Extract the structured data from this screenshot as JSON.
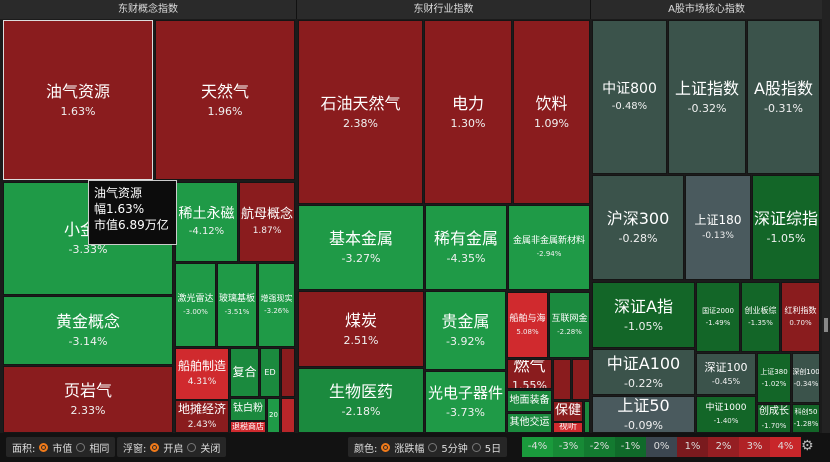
{
  "headers": [
    "东财概念指数",
    "东财行业指数",
    "A股市场核心指数"
  ],
  "colors": {
    "deep_red": "#8a1c1e",
    "red": "#b8262a",
    "bright_red": "#d02a2e",
    "green": "#1f9a47",
    "mid_green": "#1b8a3e",
    "dark_green": "#136628",
    "darker_green": "#0f4e22",
    "gray_green": "#3b534b",
    "gray": "#4a5a5e"
  },
  "tiles": [
    {
      "name": "油气资源",
      "pct": "1.63%",
      "c": "deep_red"
    },
    {
      "name": "天然气",
      "pct": "1.96%",
      "c": "deep_red"
    },
    {
      "name": "小金属",
      "pct": "-3.33%",
      "c": "green"
    },
    {
      "name": "稀土永磁",
      "pct": "-4.12%",
      "c": "green"
    },
    {
      "name": "航母概念",
      "pct": "1.87%",
      "c": "deep_red"
    },
    {
      "name": "黄金概念",
      "pct": "-3.14%",
      "c": "green"
    },
    {
      "name": "页岩气",
      "pct": "2.33%",
      "c": "deep_red"
    },
    {
      "name": "激光雷达",
      "pct": "-3.00%",
      "c": "green"
    },
    {
      "name": "玻璃基板",
      "pct": "-3.51%",
      "c": "green"
    },
    {
      "name": "增强现实",
      "pct": "-3.26%",
      "c": "green"
    },
    {
      "name": "船舶制造",
      "pct": "4.31%",
      "c": "bright_red"
    },
    {
      "name": "复合",
      "pct": "",
      "c": "mid_green"
    },
    {
      "name": "ED",
      "pct": "",
      "c": "mid_green"
    },
    {
      "name": "",
      "pct": "",
      "c": "deep_red"
    },
    {
      "name": "地摊经济",
      "pct": "2.43%",
      "c": "deep_red"
    },
    {
      "name": "钛白粉",
      "pct": "",
      "c": "mid_green"
    },
    {
      "name": "退税商店",
      "pct": "",
      "c": "bright_red"
    },
    {
      "name": "20",
      "pct": "",
      "c": "green"
    },
    {
      "name": "",
      "pct": "",
      "c": "red"
    },
    {
      "name": "石油天然气",
      "pct": "2.38%",
      "c": "deep_red"
    },
    {
      "name": "电力",
      "pct": "1.30%",
      "c": "deep_red"
    },
    {
      "name": "饮料",
      "pct": "1.09%",
      "c": "deep_red"
    },
    {
      "name": "基本金属",
      "pct": "-3.27%",
      "c": "green"
    },
    {
      "name": "稀有金属",
      "pct": "-4.35%",
      "c": "green"
    },
    {
      "name": "金属非金属新材料",
      "pct": "-2.94%",
      "c": "green"
    },
    {
      "name": "煤炭",
      "pct": "2.51%",
      "c": "deep_red"
    },
    {
      "name": "生物医药",
      "pct": "-2.18%",
      "c": "mid_green"
    },
    {
      "name": "贵金属",
      "pct": "-3.92%",
      "c": "green"
    },
    {
      "name": "光电子器件",
      "pct": "-3.73%",
      "c": "green"
    },
    {
      "name": "船舶与海",
      "pct": "5.08%",
      "c": "bright_red"
    },
    {
      "name": "互联网金",
      "pct": "-2.28%",
      "c": "mid_green"
    },
    {
      "name": "燃气",
      "pct": "1.55%",
      "c": "deep_red"
    },
    {
      "name": "",
      "pct": "",
      "c": "deep_red"
    },
    {
      "name": "",
      "pct": "",
      "c": "deep_red"
    },
    {
      "name": "地面装备",
      "pct": "",
      "c": "mid_green"
    },
    {
      "name": "其他交运",
      "pct": "",
      "c": "mid_green"
    },
    {
      "name": "保健",
      "pct": "",
      "c": "deep_red"
    },
    {
      "name": "视听",
      "pct": "",
      "c": "bright_red"
    },
    {
      "name": "",
      "pct": "",
      "c": "mid_green"
    },
    {
      "name": "中证800",
      "pct": "-0.48%",
      "c": "gray_green"
    },
    {
      "name": "上证指数",
      "pct": "-0.32%",
      "c": "gray_green"
    },
    {
      "name": "A股指数",
      "pct": "-0.31%",
      "c": "gray_green"
    },
    {
      "name": "沪深300",
      "pct": "-0.28%",
      "c": "gray_green"
    },
    {
      "name": "上证180",
      "pct": "-0.13%",
      "c": "gray"
    },
    {
      "name": "深证综指",
      "pct": "-1.05%",
      "c": "dark_green"
    },
    {
      "name": "深证A指",
      "pct": "-1.05%",
      "c": "dark_green"
    },
    {
      "name": "国证2000",
      "pct": "-1.49%",
      "c": "dark_green"
    },
    {
      "name": "创业板综",
      "pct": "-1.35%",
      "c": "dark_green"
    },
    {
      "name": "红利指数",
      "pct": "0.70%",
      "c": "deep_red"
    },
    {
      "name": "中证A100",
      "pct": "-0.22%",
      "c": "gray_green"
    },
    {
      "name": "上证50",
      "pct": "-0.09%",
      "c": "gray"
    },
    {
      "name": "深证100",
      "pct": "-0.45%",
      "c": "gray_green"
    },
    {
      "name": "中证1000",
      "pct": "-1.40%",
      "c": "dark_green"
    },
    {
      "name": "上证380",
      "pct": "-1.02%",
      "c": "dark_green"
    },
    {
      "name": "深创100",
      "pct": "-0.34%",
      "c": "gray_green"
    },
    {
      "name": "创成长",
      "pct": "-1.70%",
      "c": "dark_green"
    },
    {
      "name": "科创50",
      "pct": "-1.28%",
      "c": "dark_green"
    }
  ],
  "tooltip": {
    "name": "油气资源",
    "change": "幅1.63%",
    "cap": "市值6.89万亿"
  },
  "bottom": {
    "area_label": "面积:",
    "area_opts": [
      "市值",
      "相同"
    ],
    "float_label": "浮窗:",
    "float_opts": [
      "开启",
      "关闭"
    ],
    "color_label": "颜色:",
    "color_opts": [
      "涨跌幅",
      "5分钟",
      "5日"
    ],
    "legend": [
      {
        "t": "-4%",
        "c": "#1a9a3c"
      },
      {
        "t": "-3%",
        "c": "#178a36"
      },
      {
        "t": "-2%",
        "c": "#137a30"
      },
      {
        "t": "-1%",
        "c": "#106a2a"
      },
      {
        "t": "0%",
        "c": "#3c4650"
      },
      {
        "t": "1%",
        "c": "#7a1a1e"
      },
      {
        "t": "2%",
        "c": "#951e22"
      },
      {
        "t": "3%",
        "c": "#b02226"
      },
      {
        "t": "4%",
        "c": "#c8262a"
      }
    ]
  }
}
